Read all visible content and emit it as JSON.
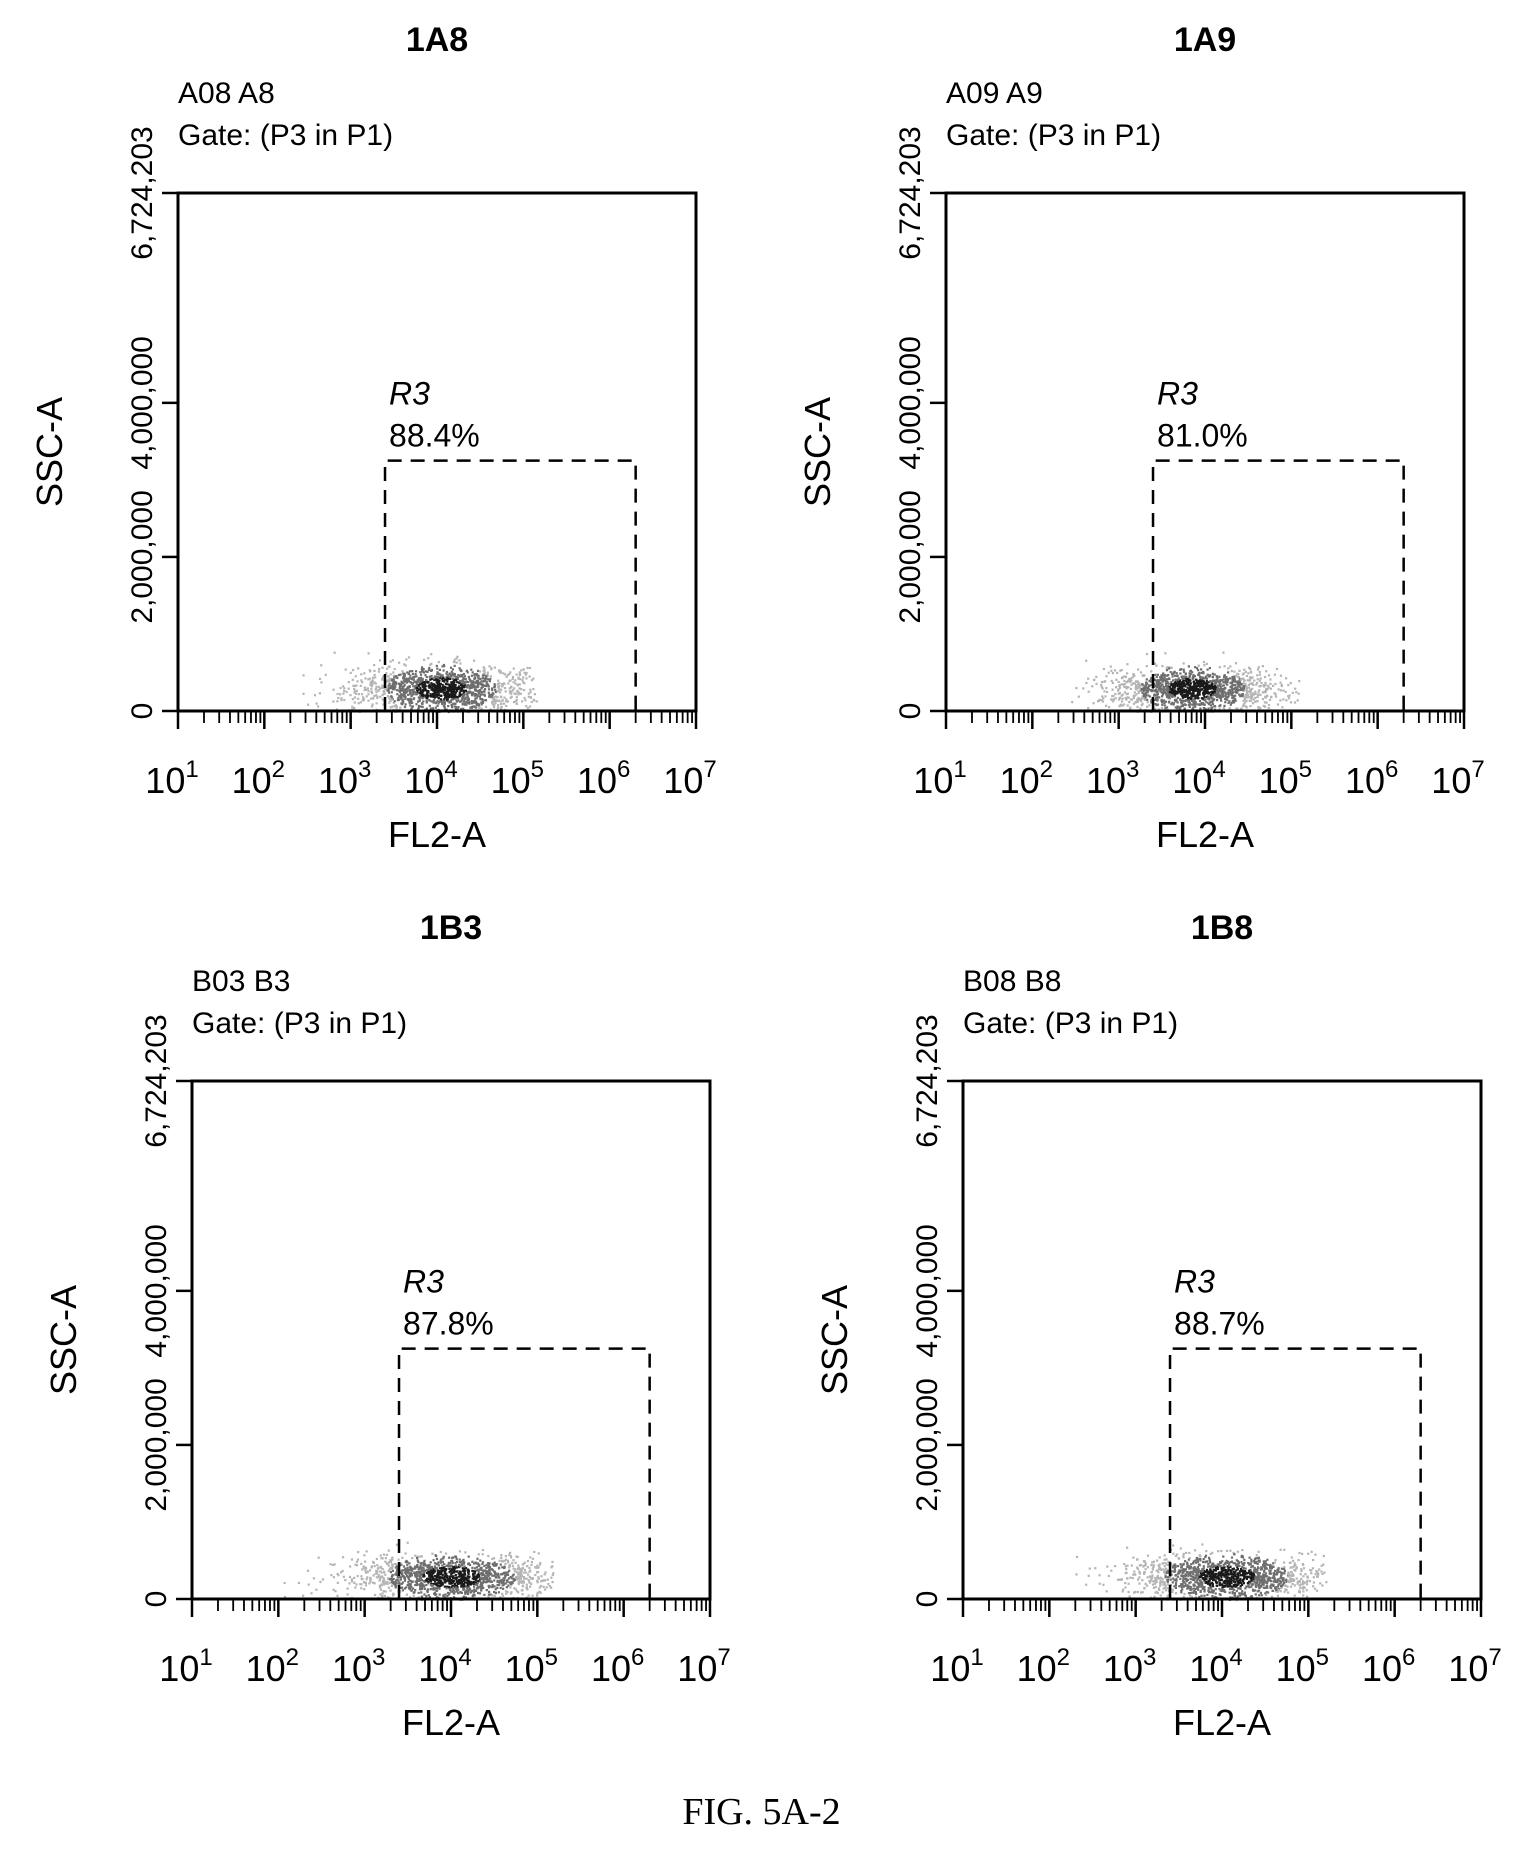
{
  "figure_caption": "FIG. 5A-2",
  "colors": {
    "ink": "#000000",
    "density_outer": "#b5b5b5",
    "density_mid": "#6e6e6e",
    "density_core": "#1a1a1a"
  },
  "chart_data": [
    {
      "type": "scatter",
      "title": "1A8",
      "subtitle_line1": "A08 A8",
      "subtitle_line2": "Gate: (P3 in P1)",
      "xlabel": "FL2-A",
      "ylabel": "SSC-A",
      "x_scale": "log",
      "xlim": [
        10,
        10000000
      ],
      "ylim": [
        0,
        6724203
      ],
      "x_ticks": [
        {
          "base": "10",
          "exp": "1"
        },
        {
          "base": "10",
          "exp": "2"
        },
        {
          "base": "10",
          "exp": "3"
        },
        {
          "base": "10",
          "exp": "4"
        },
        {
          "base": "10",
          "exp": "5"
        },
        {
          "base": "10",
          "exp": "6"
        },
        {
          "base": "10",
          "exp": "7"
        }
      ],
      "y_ticks": [
        "0",
        "2,000,000",
        "4,000,000",
        "6,724,203"
      ],
      "y_tick_values": [
        0,
        2000000,
        4000000,
        6724203
      ],
      "gate": {
        "name": "R3",
        "percent": "88.4%",
        "x_range": [
          2500,
          2000000
        ],
        "y_range": [
          0,
          3250000
        ]
      },
      "population": {
        "x_center": 11000,
        "y_center": 300000,
        "x_min": 250,
        "x_max": 140000,
        "y_max": 900000
      }
    },
    {
      "type": "scatter",
      "title": "1A9",
      "subtitle_line1": "A09 A9",
      "subtitle_line2": "Gate: (P3 in P1)",
      "xlabel": "FL2-A",
      "ylabel": "SSC-A",
      "x_scale": "log",
      "xlim": [
        10,
        10000000
      ],
      "ylim": [
        0,
        6724203
      ],
      "x_ticks": [
        {
          "base": "10",
          "exp": "1"
        },
        {
          "base": "10",
          "exp": "2"
        },
        {
          "base": "10",
          "exp": "3"
        },
        {
          "base": "10",
          "exp": "4"
        },
        {
          "base": "10",
          "exp": "5"
        },
        {
          "base": "10",
          "exp": "6"
        },
        {
          "base": "10",
          "exp": "7"
        }
      ],
      "y_ticks": [
        "0",
        "2,000,000",
        "4,000,000",
        "6,724,203"
      ],
      "y_tick_values": [
        0,
        2000000,
        4000000,
        6724203
      ],
      "gate": {
        "name": "R3",
        "percent": "81.0%",
        "x_range": [
          2500,
          2000000
        ],
        "y_range": [
          0,
          3250000
        ]
      },
      "population": {
        "x_center": 7000,
        "y_center": 300000,
        "x_min": 280,
        "x_max": 120000,
        "y_max": 850000
      }
    },
    {
      "type": "scatter",
      "title": "1B3",
      "subtitle_line1": "B03 B3",
      "subtitle_line2": "Gate: (P3 in P1)",
      "xlabel": "FL2-A",
      "ylabel": "SSC-A",
      "x_scale": "log",
      "xlim": [
        10,
        10000000
      ],
      "ylim": [
        0,
        6724203
      ],
      "x_ticks": [
        {
          "base": "10",
          "exp": "1"
        },
        {
          "base": "10",
          "exp": "2"
        },
        {
          "base": "10",
          "exp": "3"
        },
        {
          "base": "10",
          "exp": "4"
        },
        {
          "base": "10",
          "exp": "5"
        },
        {
          "base": "10",
          "exp": "6"
        },
        {
          "base": "10",
          "exp": "7"
        }
      ],
      "y_ticks": [
        "0",
        "2,000,000",
        "4,000,000",
        "6,724,203"
      ],
      "y_tick_values": [
        0,
        2000000,
        4000000,
        6724203
      ],
      "gate": {
        "name": "R3",
        "percent": "87.8%",
        "x_range": [
          2500,
          2000000
        ],
        "y_range": [
          0,
          3250000
        ]
      },
      "population": {
        "x_center": 10000,
        "y_center": 300000,
        "x_min": 100,
        "x_max": 150000,
        "y_max": 850000
      }
    },
    {
      "type": "scatter",
      "title": "1B8",
      "subtitle_line1": "B08 B8",
      "subtitle_line2": "Gate: (P3 in P1)",
      "xlabel": "FL2-A",
      "ylabel": "SSC-A",
      "x_scale": "log",
      "xlim": [
        10,
        10000000
      ],
      "ylim": [
        0,
        6724203
      ],
      "x_ticks": [
        {
          "base": "10",
          "exp": "1"
        },
        {
          "base": "10",
          "exp": "2"
        },
        {
          "base": "10",
          "exp": "3"
        },
        {
          "base": "10",
          "exp": "4"
        },
        {
          "base": "10",
          "exp": "5"
        },
        {
          "base": "10",
          "exp": "6"
        },
        {
          "base": "10",
          "exp": "7"
        }
      ],
      "y_ticks": [
        "0",
        "2,000,000",
        "4,000,000",
        "6,724,203"
      ],
      "y_tick_values": [
        0,
        2000000,
        4000000,
        6724203
      ],
      "gate": {
        "name": "R3",
        "percent": "88.7%",
        "x_range": [
          2500,
          2000000
        ],
        "y_range": [
          0,
          3250000
        ]
      },
      "population": {
        "x_center": 11000,
        "y_center": 300000,
        "x_min": 130,
        "x_max": 160000,
        "y_max": 850000
      }
    }
  ]
}
